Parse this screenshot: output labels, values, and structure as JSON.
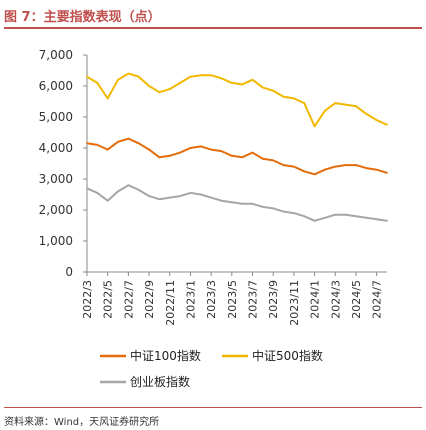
{
  "title": "图 7：主要指数表现（点）",
  "source": "资料来源：Wind，天风证券研究所",
  "chart_data": {
    "type": "line",
    "title": "",
    "xlabel": "",
    "ylabel": "",
    "ylim": [
      0,
      7000
    ],
    "yticks": [
      "0",
      "1,000",
      "2,000",
      "3,000",
      "4,000",
      "5,000",
      "6,000",
      "7,000"
    ],
    "xticks": [
      "2022/3",
      "2022/5",
      "2022/7",
      "2022/9",
      "2022/11",
      "2023/1",
      "2023/3",
      "2023/5",
      "2023/7",
      "2023/9",
      "2023/11",
      "2024/1",
      "2024/3",
      "2024/5",
      "2024/7"
    ],
    "x": [
      "2022/3",
      "2022/4",
      "2022/5",
      "2022/6",
      "2022/7",
      "2022/8",
      "2022/9",
      "2022/10",
      "2022/11",
      "2022/12",
      "2023/1",
      "2023/2",
      "2023/3",
      "2023/4",
      "2023/5",
      "2023/6",
      "2023/7",
      "2023/8",
      "2023/9",
      "2023/10",
      "2023/11",
      "2023/12",
      "2024/1",
      "2024/2",
      "2024/3",
      "2024/4",
      "2024/5",
      "2024/6",
      "2024/7",
      "2024/8"
    ],
    "legend_position": "bottom",
    "grid": false,
    "series": [
      {
        "name": "中证100指数",
        "color": "#e46c0a",
        "values": [
          4150,
          4100,
          3950,
          4200,
          4300,
          4150,
          3950,
          3700,
          3750,
          3850,
          4000,
          4050,
          3950,
          3900,
          3750,
          3700,
          3850,
          3650,
          3600,
          3450,
          3400,
          3250,
          3150,
          3300,
          3400,
          3450,
          3450,
          3350,
          3300,
          3200
        ]
      },
      {
        "name": "中证500指数",
        "color": "#f2b800",
        "values": [
          6300,
          6100,
          5600,
          6200,
          6400,
          6300,
          6000,
          5800,
          5900,
          6100,
          6300,
          6350,
          6350,
          6250,
          6100,
          6050,
          6200,
          5950,
          5850,
          5650,
          5600,
          5450,
          4700,
          5200,
          5450,
          5400,
          5350,
          5100,
          4900,
          4750
        ]
      },
      {
        "name": "创业板指数",
        "color": "#a6a6a6",
        "values": [
          2700,
          2550,
          2300,
          2600,
          2800,
          2650,
          2450,
          2350,
          2400,
          2450,
          2550,
          2500,
          2400,
          2300,
          2250,
          2200,
          2200,
          2100,
          2050,
          1950,
          1900,
          1800,
          1650,
          1750,
          1850,
          1850,
          1800,
          1750,
          1700,
          1650
        ]
      }
    ]
  }
}
